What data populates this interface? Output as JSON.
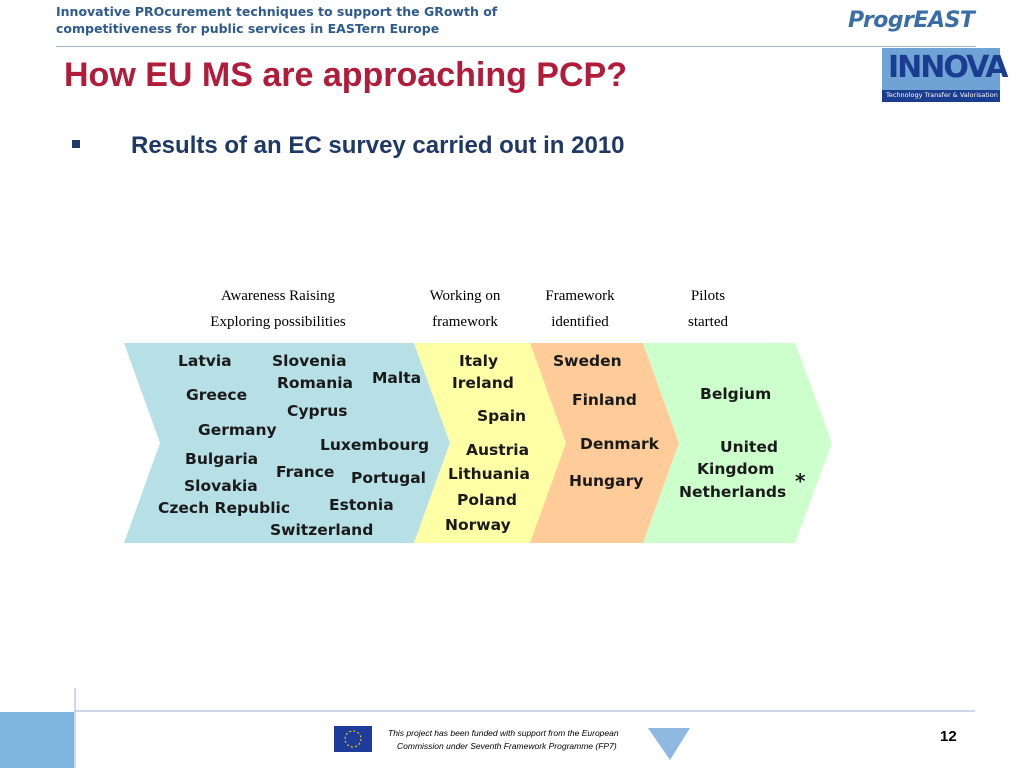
{
  "header": {
    "line1": "Innovative PROcurement techniques to support the GRowth of",
    "line2": "competitiveness for public services in EASTern Europe",
    "logo1": "ProgrEAST",
    "logo2": "INNOVA",
    "logo2_tagline": "Technology Transfer & Valorisation"
  },
  "title": "How EU MS are approaching PCP?",
  "bullet": "Results of an EC survey carried out in 2010",
  "columns": [
    [
      "Awareness Raising",
      "Exploring possibilities"
    ],
    [
      "Working on",
      "framework"
    ],
    [
      "Framework",
      "identified"
    ],
    [
      "Pilots",
      "started"
    ]
  ],
  "countries": [
    "Latvia",
    "Slovenia",
    "Romania",
    "Malta",
    "Greece",
    "Cyprus",
    "Germany",
    "Luxembourg",
    "Bulgaria",
    "France",
    "Portugal",
    "Slovakia",
    "Czech Republic",
    "Estonia",
    "Switzerland",
    "Italy",
    "Ireland",
    "Spain",
    "Austria",
    "Lithuania",
    "Poland",
    "Norway",
    "Sweden",
    "Finland",
    "Denmark",
    "Hungary",
    "Belgium",
    "United",
    "Kingdom",
    "Netherlands",
    "*"
  ],
  "footer": {
    "line1": "This project has been funded with support from the European",
    "line2": "Commission under Seventh Framework Programme (FP7)",
    "page": "12"
  }
}
